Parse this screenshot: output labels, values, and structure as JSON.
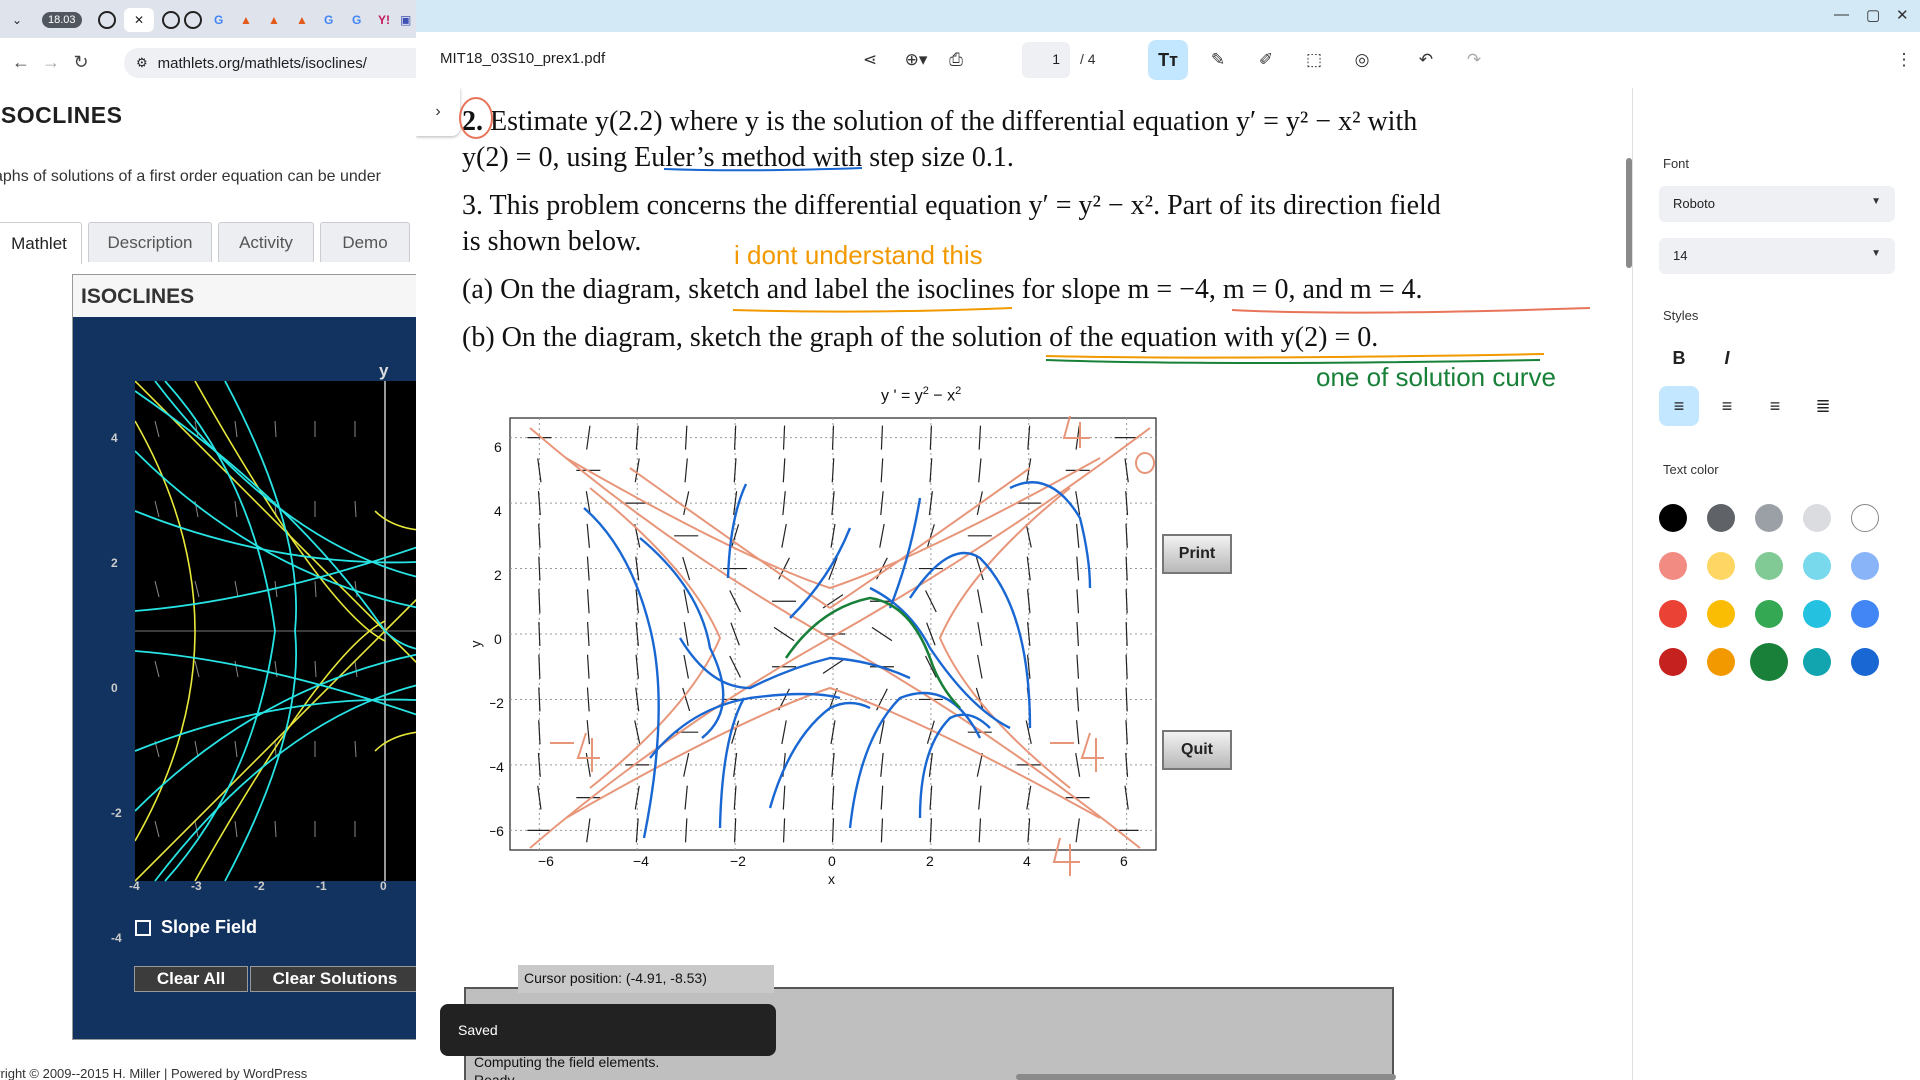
{
  "browser": {
    "clock_badge": "18.03",
    "url": "mathlets.org/mathlets/isoclines/"
  },
  "website": {
    "title": "ISOCLINES",
    "intro": "aphs of solutions of a first order equation can be under",
    "tabs": [
      "Mathlet",
      "Description",
      "Activity",
      "Demo"
    ],
    "applet": {
      "title": "ISOCLINES",
      "y_axis_label": "y",
      "y_ticks": [
        "4",
        "2",
        "0",
        "-2",
        "-4"
      ],
      "x_ticks": [
        "-4",
        "-3",
        "-2",
        "-1",
        "0"
      ],
      "slope_field_label": "Slope Field",
      "clear_all_label": "Clear All",
      "clear_solutions_label": "Clear Solutions"
    },
    "footer": "yright © 2009--2015 H. Miller | Powered by WordPress"
  },
  "pdf": {
    "filename": "MIT18_03S10_prex1.pdf",
    "page_current": "1",
    "page_total": "/  4",
    "problem2_num": "2.",
    "problem2_line1_text": "Estimate",
    "problem2_line1_expr": "y(2.2) where y is the solution of the differential equation y′ = y² − x² with",
    "problem2_line2": "y(2) = 0, using Euler’s method with step size 0.1.",
    "problem3_line1": "3.  This problem concerns the differential equation y′ = y² − x². Part of its direction field",
    "problem3_line2": "is shown below.",
    "part_a": "(a) On the diagram, sketch and label the isoclines for slope m = −4, m = 0, and m = 4.",
    "part_b": "(b) On the diagram, sketch the graph of the solution of the equation with y(2) = 0.",
    "note_orange": "i dont understand this",
    "note_green": "one of solution curve",
    "plot": {
      "title": "y ' = y",
      "title_sup": "2",
      "title_rest": " − x",
      "title_sup2": "2",
      "xlabel": "x",
      "ylabel": "y",
      "x_ticks": [
        "−6",
        "−4",
        "−2",
        "0",
        "2",
        "4",
        "6"
      ],
      "y_ticks": [
        "6",
        "4",
        "2",
        "0",
        "−2",
        "−4",
        "−6"
      ],
      "handwritten_labels": [
        "4",
        "0",
        "-4",
        "-4",
        "4"
      ]
    },
    "print_label": "Print",
    "quit_label": "Quit",
    "cursor_position": "Cursor position:  (-4.91, -8.53)",
    "status_lines": [
      "Computing the field elements.",
      "Ready."
    ],
    "toast": "Saved"
  },
  "side_panel": {
    "font_label": "Font",
    "font_value": "Roboto",
    "size_value": "14",
    "styles_label": "Styles",
    "bold_label": "B",
    "italic_label": "I",
    "text_color_label": "Text color",
    "colors": [
      "#000000",
      "#5f6368",
      "#9aa0a6",
      "#dadce0",
      "#ffffff",
      "#f28b82",
      "#fdd663",
      "#81c995",
      "#78d9ec",
      "#8ab4f8",
      "#ea4335",
      "#fbbc04",
      "#34a853",
      "#24c1e0",
      "#4285f4",
      "#c5221f",
      "#f29900",
      "#188038",
      "#12a4af",
      "#1967d2"
    ]
  }
}
